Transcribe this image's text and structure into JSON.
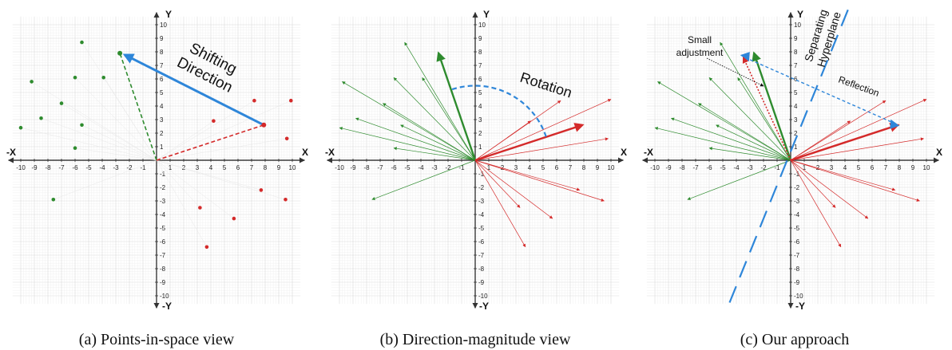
{
  "panels": [
    {
      "caption": "(a) Points-in-space view",
      "axis_labels": {
        "x_pos": "X",
        "x_neg": "-X",
        "y_pos": "Y",
        "y_neg": "-Y"
      },
      "annotations": {
        "shift_line1": "Shifting",
        "shift_line2": "Direction"
      },
      "green_points": [
        [
          -5.5,
          8.7
        ],
        [
          -9.2,
          5.8
        ],
        [
          -6,
          6.1
        ],
        [
          -3.9,
          6.1
        ],
        [
          -7,
          4.2
        ],
        [
          -8.5,
          3.1
        ],
        [
          -5.5,
          2.6
        ],
        [
          -10,
          2.4
        ],
        [
          -6,
          0.9
        ],
        [
          -7.6,
          -2.9
        ]
      ],
      "red_points": [
        [
          7.2,
          4.4
        ],
        [
          9.9,
          4.4
        ],
        [
          4.2,
          2.9
        ],
        [
          9.6,
          1.6
        ],
        [
          7.7,
          -2.2
        ],
        [
          9.5,
          -2.9
        ],
        [
          3.2,
          -3.5
        ],
        [
          5.7,
          -4.3
        ],
        [
          3.7,
          -6.4
        ]
      ],
      "shift_from": [
        7.9,
        2.6
      ],
      "shift_to": [
        -2.7,
        7.9
      ]
    },
    {
      "caption": "(b) Direction-magnitude view",
      "axis_labels": {
        "x_pos": "X",
        "x_neg": "-X",
        "y_pos": "Y",
        "y_neg": "-Y"
      },
      "annotations": {
        "rotation": "Rotation"
      },
      "green_vectors": [
        [
          -5.2,
          8.7
        ],
        [
          -9.8,
          5.8
        ],
        [
          -6,
          6.1
        ],
        [
          -3.9,
          6.1
        ],
        [
          -6.8,
          4.2
        ],
        [
          -8.8,
          3.1
        ],
        [
          -5.5,
          2.6
        ],
        [
          -10,
          2.4
        ],
        [
          -6,
          0.9
        ],
        [
          -7.6,
          -2.9
        ]
      ],
      "red_vectors": [
        [
          6.3,
          4.4
        ],
        [
          10,
          4.5
        ],
        [
          4.1,
          2.9
        ],
        [
          9.8,
          1.6
        ],
        [
          7.7,
          -2.2
        ],
        [
          9.5,
          -3
        ],
        [
          3.3,
          -3.5
        ],
        [
          5.7,
          -4.3
        ],
        [
          3.7,
          -6.4
        ]
      ],
      "main_green": [
        -2.7,
        7.9
      ],
      "main_red": [
        7.9,
        2.6
      ]
    },
    {
      "caption": "(c) Our approach",
      "axis_labels": {
        "x_pos": "X",
        "x_neg": "-X",
        "y_pos": "Y",
        "y_neg": "-Y"
      },
      "annotations": {
        "small_adj_line1": "Small",
        "small_adj_line2": "adjustment",
        "sep_line1": "Separating",
        "sep_line2": "Hyperplane",
        "reflection": "Reflection"
      },
      "green_vectors": [
        [
          -5.2,
          8.7
        ],
        [
          -9.8,
          5.8
        ],
        [
          -6,
          6.1
        ],
        [
          -3.9,
          6.1
        ],
        [
          -6.8,
          4.2
        ],
        [
          -8.8,
          3.1
        ],
        [
          -5.5,
          2.6
        ],
        [
          -10,
          2.4
        ],
        [
          -6,
          0.9
        ],
        [
          -7.6,
          -2.9
        ]
      ],
      "red_vectors": [
        [
          7,
          4.4
        ],
        [
          10,
          4.5
        ],
        [
          4.4,
          2.9
        ],
        [
          9.8,
          1.6
        ],
        [
          7.7,
          -2.2
        ],
        [
          9.5,
          -3
        ],
        [
          3.3,
          -3.5
        ],
        [
          5.7,
          -4.3
        ],
        [
          3.7,
          -6.4
        ]
      ],
      "main_green": [
        -2.7,
        7.9
      ],
      "main_red": [
        7.9,
        2.6
      ],
      "blue_tip_upper": [
        -3.6,
        7.7
      ],
      "blue_tip_lower": [
        7.9,
        2.6
      ],
      "hyperplane_from": [
        -4.5,
        -10.5
      ],
      "hyperplane_to": [
        4.3,
        11.3
      ]
    }
  ],
  "tick_values": [
    -10,
    -9,
    -8,
    -7,
    -6,
    -5,
    -4,
    -3,
    -2,
    -1,
    1,
    2,
    3,
    4,
    5,
    6,
    7,
    8,
    9,
    10
  ],
  "colors": {
    "green": "#2e8b2e",
    "red": "#d42a2a",
    "blue": "#2e86d9",
    "grid": "#d9d9d9",
    "axis": "#333333"
  }
}
